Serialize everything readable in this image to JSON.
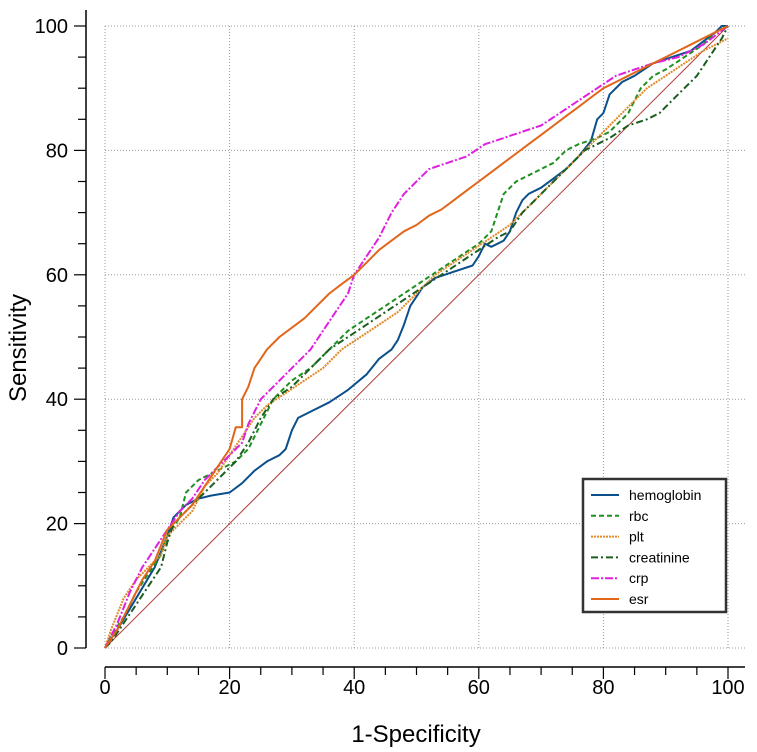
{
  "chart_data": {
    "type": "line",
    "xlabel": "1-Specificity",
    "ylabel": "Sensitivity",
    "xlim": [
      0,
      100
    ],
    "ylim": [
      0,
      100
    ],
    "x_ticks": [
      "0",
      "20",
      "40",
      "60",
      "80",
      "100"
    ],
    "y_ticks": [
      "0",
      "20",
      "40",
      "60",
      "80",
      "100"
    ],
    "grid": true,
    "legend_placement": "bottom-right",
    "reference_line": {
      "color": "#b03a3a",
      "points": [
        [
          0,
          0
        ],
        [
          100,
          100
        ]
      ]
    },
    "series": [
      {
        "name": "hemoglobin",
        "color": "#0b4f8c",
        "dash": "solid",
        "points": [
          [
            0,
            0
          ],
          [
            2,
            3
          ],
          [
            5,
            8
          ],
          [
            8,
            13
          ],
          [
            10,
            18
          ],
          [
            11,
            21
          ],
          [
            13,
            23
          ],
          [
            15,
            24
          ],
          [
            17,
            24.5
          ],
          [
            20,
            25
          ],
          [
            22,
            26.5
          ],
          [
            24,
            28.5
          ],
          [
            26,
            30
          ],
          [
            28,
            31
          ],
          [
            29,
            32
          ],
          [
            30,
            35
          ],
          [
            31,
            37
          ],
          [
            33,
            38
          ],
          [
            36,
            39.5
          ],
          [
            39,
            41.5
          ],
          [
            42,
            44
          ],
          [
            44,
            46.5
          ],
          [
            46,
            48
          ],
          [
            47,
            49.5
          ],
          [
            48,
            52
          ],
          [
            49,
            55
          ],
          [
            51,
            58
          ],
          [
            53,
            59.5
          ],
          [
            56,
            60.5
          ],
          [
            59,
            61.5
          ],
          [
            60,
            63
          ],
          [
            61,
            65
          ],
          [
            62,
            64.5
          ],
          [
            64,
            65.5
          ],
          [
            65,
            67
          ],
          [
            66,
            70
          ],
          [
            67,
            72
          ],
          [
            68,
            73
          ],
          [
            70,
            74
          ],
          [
            72,
            75.5
          ],
          [
            74,
            77
          ],
          [
            76,
            79
          ],
          [
            78,
            81.5
          ],
          [
            79,
            85
          ],
          [
            80,
            86
          ],
          [
            81,
            89
          ],
          [
            83,
            91
          ],
          [
            85,
            92
          ],
          [
            88,
            94
          ],
          [
            91,
            95
          ],
          [
            94,
            96
          ],
          [
            96,
            97.5
          ],
          [
            98,
            99
          ],
          [
            99,
            100
          ],
          [
            100,
            100
          ]
        ]
      },
      {
        "name": "rbc",
        "color": "#1f8f1f",
        "dash": "5,3",
        "points": [
          [
            0,
            0
          ],
          [
            1,
            2
          ],
          [
            3,
            5
          ],
          [
            5,
            9
          ],
          [
            7,
            12
          ],
          [
            9,
            15
          ],
          [
            10,
            18
          ],
          [
            12,
            21
          ],
          [
            13,
            25
          ],
          [
            15,
            27
          ],
          [
            17,
            28
          ],
          [
            19,
            29
          ],
          [
            21,
            30
          ],
          [
            23,
            32
          ],
          [
            25,
            36
          ],
          [
            27,
            40
          ],
          [
            30,
            43
          ],
          [
            33,
            45
          ],
          [
            36,
            48
          ],
          [
            39,
            51
          ],
          [
            42,
            53
          ],
          [
            45,
            55
          ],
          [
            48,
            57
          ],
          [
            51,
            59
          ],
          [
            54,
            61
          ],
          [
            57,
            63
          ],
          [
            60,
            65
          ],
          [
            62,
            67
          ],
          [
            63,
            70
          ],
          [
            64,
            73
          ],
          [
            66,
            75
          ],
          [
            68,
            76
          ],
          [
            70,
            77
          ],
          [
            72,
            78
          ],
          [
            74,
            80
          ],
          [
            76,
            81
          ],
          [
            79,
            82
          ],
          [
            81,
            83
          ],
          [
            82,
            84
          ],
          [
            84,
            86
          ],
          [
            85,
            88
          ],
          [
            86,
            90
          ],
          [
            88,
            92
          ],
          [
            90,
            93
          ],
          [
            93,
            95
          ],
          [
            96,
            97
          ],
          [
            98,
            99
          ],
          [
            100,
            100
          ]
        ]
      },
      {
        "name": "plt",
        "color": "#e08a2a",
        "dash": "2,1",
        "points": [
          [
            0,
            0
          ],
          [
            1,
            3
          ],
          [
            3,
            8
          ],
          [
            5,
            11
          ],
          [
            7,
            13
          ],
          [
            9,
            15
          ],
          [
            10,
            18
          ],
          [
            12,
            20
          ],
          [
            14,
            22
          ],
          [
            16,
            26
          ],
          [
            18,
            28
          ],
          [
            20,
            31
          ],
          [
            22,
            34
          ],
          [
            24,
            37
          ],
          [
            26,
            39
          ],
          [
            29,
            41
          ],
          [
            32,
            43
          ],
          [
            35,
            45
          ],
          [
            38,
            48
          ],
          [
            41,
            50
          ],
          [
            44,
            52
          ],
          [
            47,
            54
          ],
          [
            50,
            57
          ],
          [
            53,
            60
          ],
          [
            56,
            62
          ],
          [
            59,
            64
          ],
          [
            62,
            66
          ],
          [
            65,
            68
          ],
          [
            67,
            70
          ],
          [
            69,
            72
          ],
          [
            71,
            74
          ],
          [
            73,
            76
          ],
          [
            75,
            78
          ],
          [
            77,
            80
          ],
          [
            79,
            82
          ],
          [
            81,
            84
          ],
          [
            83,
            86
          ],
          [
            85,
            88
          ],
          [
            87,
            90
          ],
          [
            90,
            92
          ],
          [
            93,
            94
          ],
          [
            96,
            96
          ],
          [
            100,
            98
          ]
        ]
      },
      {
        "name": "creatinine",
        "color": "#1b5e20",
        "dash": "7,3,2,3",
        "points": [
          [
            0,
            0
          ],
          [
            1,
            1
          ],
          [
            3,
            4
          ],
          [
            5,
            7
          ],
          [
            7,
            10
          ],
          [
            9,
            13
          ],
          [
            10,
            17
          ],
          [
            11,
            20
          ],
          [
            13,
            22
          ],
          [
            15,
            24
          ],
          [
            17,
            26
          ],
          [
            19,
            28
          ],
          [
            21,
            30
          ],
          [
            23,
            33
          ],
          [
            25,
            37
          ],
          [
            27,
            40
          ],
          [
            30,
            42
          ],
          [
            33,
            45
          ],
          [
            36,
            48
          ],
          [
            39,
            50
          ],
          [
            42,
            52
          ],
          [
            45,
            54
          ],
          [
            48,
            56
          ],
          [
            51,
            58
          ],
          [
            54,
            60
          ],
          [
            57,
            62
          ],
          [
            60,
            64
          ],
          [
            63,
            66
          ],
          [
            65,
            67
          ],
          [
            67,
            70
          ],
          [
            69,
            72
          ],
          [
            71,
            74
          ],
          [
            73,
            76
          ],
          [
            75,
            78
          ],
          [
            77,
            80
          ],
          [
            79,
            81
          ],
          [
            81,
            82
          ],
          [
            84,
            84
          ],
          [
            87,
            85
          ],
          [
            89,
            86
          ],
          [
            91,
            88
          ],
          [
            93,
            90
          ],
          [
            95,
            92
          ],
          [
            97,
            95
          ],
          [
            99,
            98
          ],
          [
            100,
            100
          ]
        ]
      },
      {
        "name": "crp",
        "color": "#e020e0",
        "dash": "8,2,2,2",
        "points": [
          [
            0,
            0
          ],
          [
            2,
            4
          ],
          [
            4,
            9
          ],
          [
            6,
            13
          ],
          [
            8,
            16
          ],
          [
            10,
            19
          ],
          [
            12,
            22
          ],
          [
            14,
            24
          ],
          [
            16,
            27
          ],
          [
            18,
            29
          ],
          [
            20,
            31
          ],
          [
            22,
            33
          ],
          [
            23,
            36
          ],
          [
            25,
            40
          ],
          [
            27,
            42
          ],
          [
            29,
            44
          ],
          [
            31,
            46
          ],
          [
            33,
            48
          ],
          [
            35,
            51
          ],
          [
            37,
            54
          ],
          [
            39,
            57
          ],
          [
            40,
            60
          ],
          [
            42,
            63
          ],
          [
            44,
            66
          ],
          [
            46,
            70
          ],
          [
            48,
            73
          ],
          [
            50,
            75
          ],
          [
            52,
            77
          ],
          [
            55,
            78
          ],
          [
            58,
            79
          ],
          [
            61,
            81
          ],
          [
            64,
            82
          ],
          [
            67,
            83
          ],
          [
            70,
            84
          ],
          [
            73,
            86
          ],
          [
            76,
            88
          ],
          [
            79,
            90
          ],
          [
            82,
            92
          ],
          [
            85,
            93
          ],
          [
            88,
            94
          ],
          [
            92,
            95
          ],
          [
            96,
            97
          ],
          [
            100,
            100
          ]
        ]
      },
      {
        "name": "esr",
        "color": "#e2661a",
        "dash": "solid",
        "points": [
          [
            0,
            0
          ],
          [
            2,
            3
          ],
          [
            4,
            7
          ],
          [
            6,
            11
          ],
          [
            8,
            14
          ],
          [
            10,
            19
          ],
          [
            12,
            21
          ],
          [
            14,
            23
          ],
          [
            16,
            26
          ],
          [
            18,
            29
          ],
          [
            20,
            32
          ],
          [
            21,
            35.5
          ],
          [
            22,
            35.5
          ],
          [
            22,
            40
          ],
          [
            23,
            42
          ],
          [
            24,
            45
          ],
          [
            26,
            48
          ],
          [
            28,
            50
          ],
          [
            30,
            51.5
          ],
          [
            32,
            53
          ],
          [
            34,
            55
          ],
          [
            36,
            57
          ],
          [
            38,
            58.5
          ],
          [
            40,
            60
          ],
          [
            42,
            62
          ],
          [
            44,
            64
          ],
          [
            46,
            65.5
          ],
          [
            48,
            67
          ],
          [
            50,
            68
          ],
          [
            52,
            69.5
          ],
          [
            54,
            70.5
          ],
          [
            56,
            72
          ],
          [
            58,
            73.5
          ],
          [
            60,
            75
          ],
          [
            62,
            76.5
          ],
          [
            64,
            78
          ],
          [
            66,
            79.5
          ],
          [
            68,
            81
          ],
          [
            70,
            82.5
          ],
          [
            72,
            84
          ],
          [
            74,
            85.5
          ],
          [
            76,
            87
          ],
          [
            78,
            88.5
          ],
          [
            80,
            90
          ],
          [
            82,
            91
          ],
          [
            84,
            92
          ],
          [
            86,
            93
          ],
          [
            88,
            94
          ],
          [
            90,
            95
          ],
          [
            92,
            96
          ],
          [
            94,
            97
          ],
          [
            96,
            98
          ],
          [
            98,
            99
          ],
          [
            100,
            100
          ]
        ]
      }
    ]
  }
}
